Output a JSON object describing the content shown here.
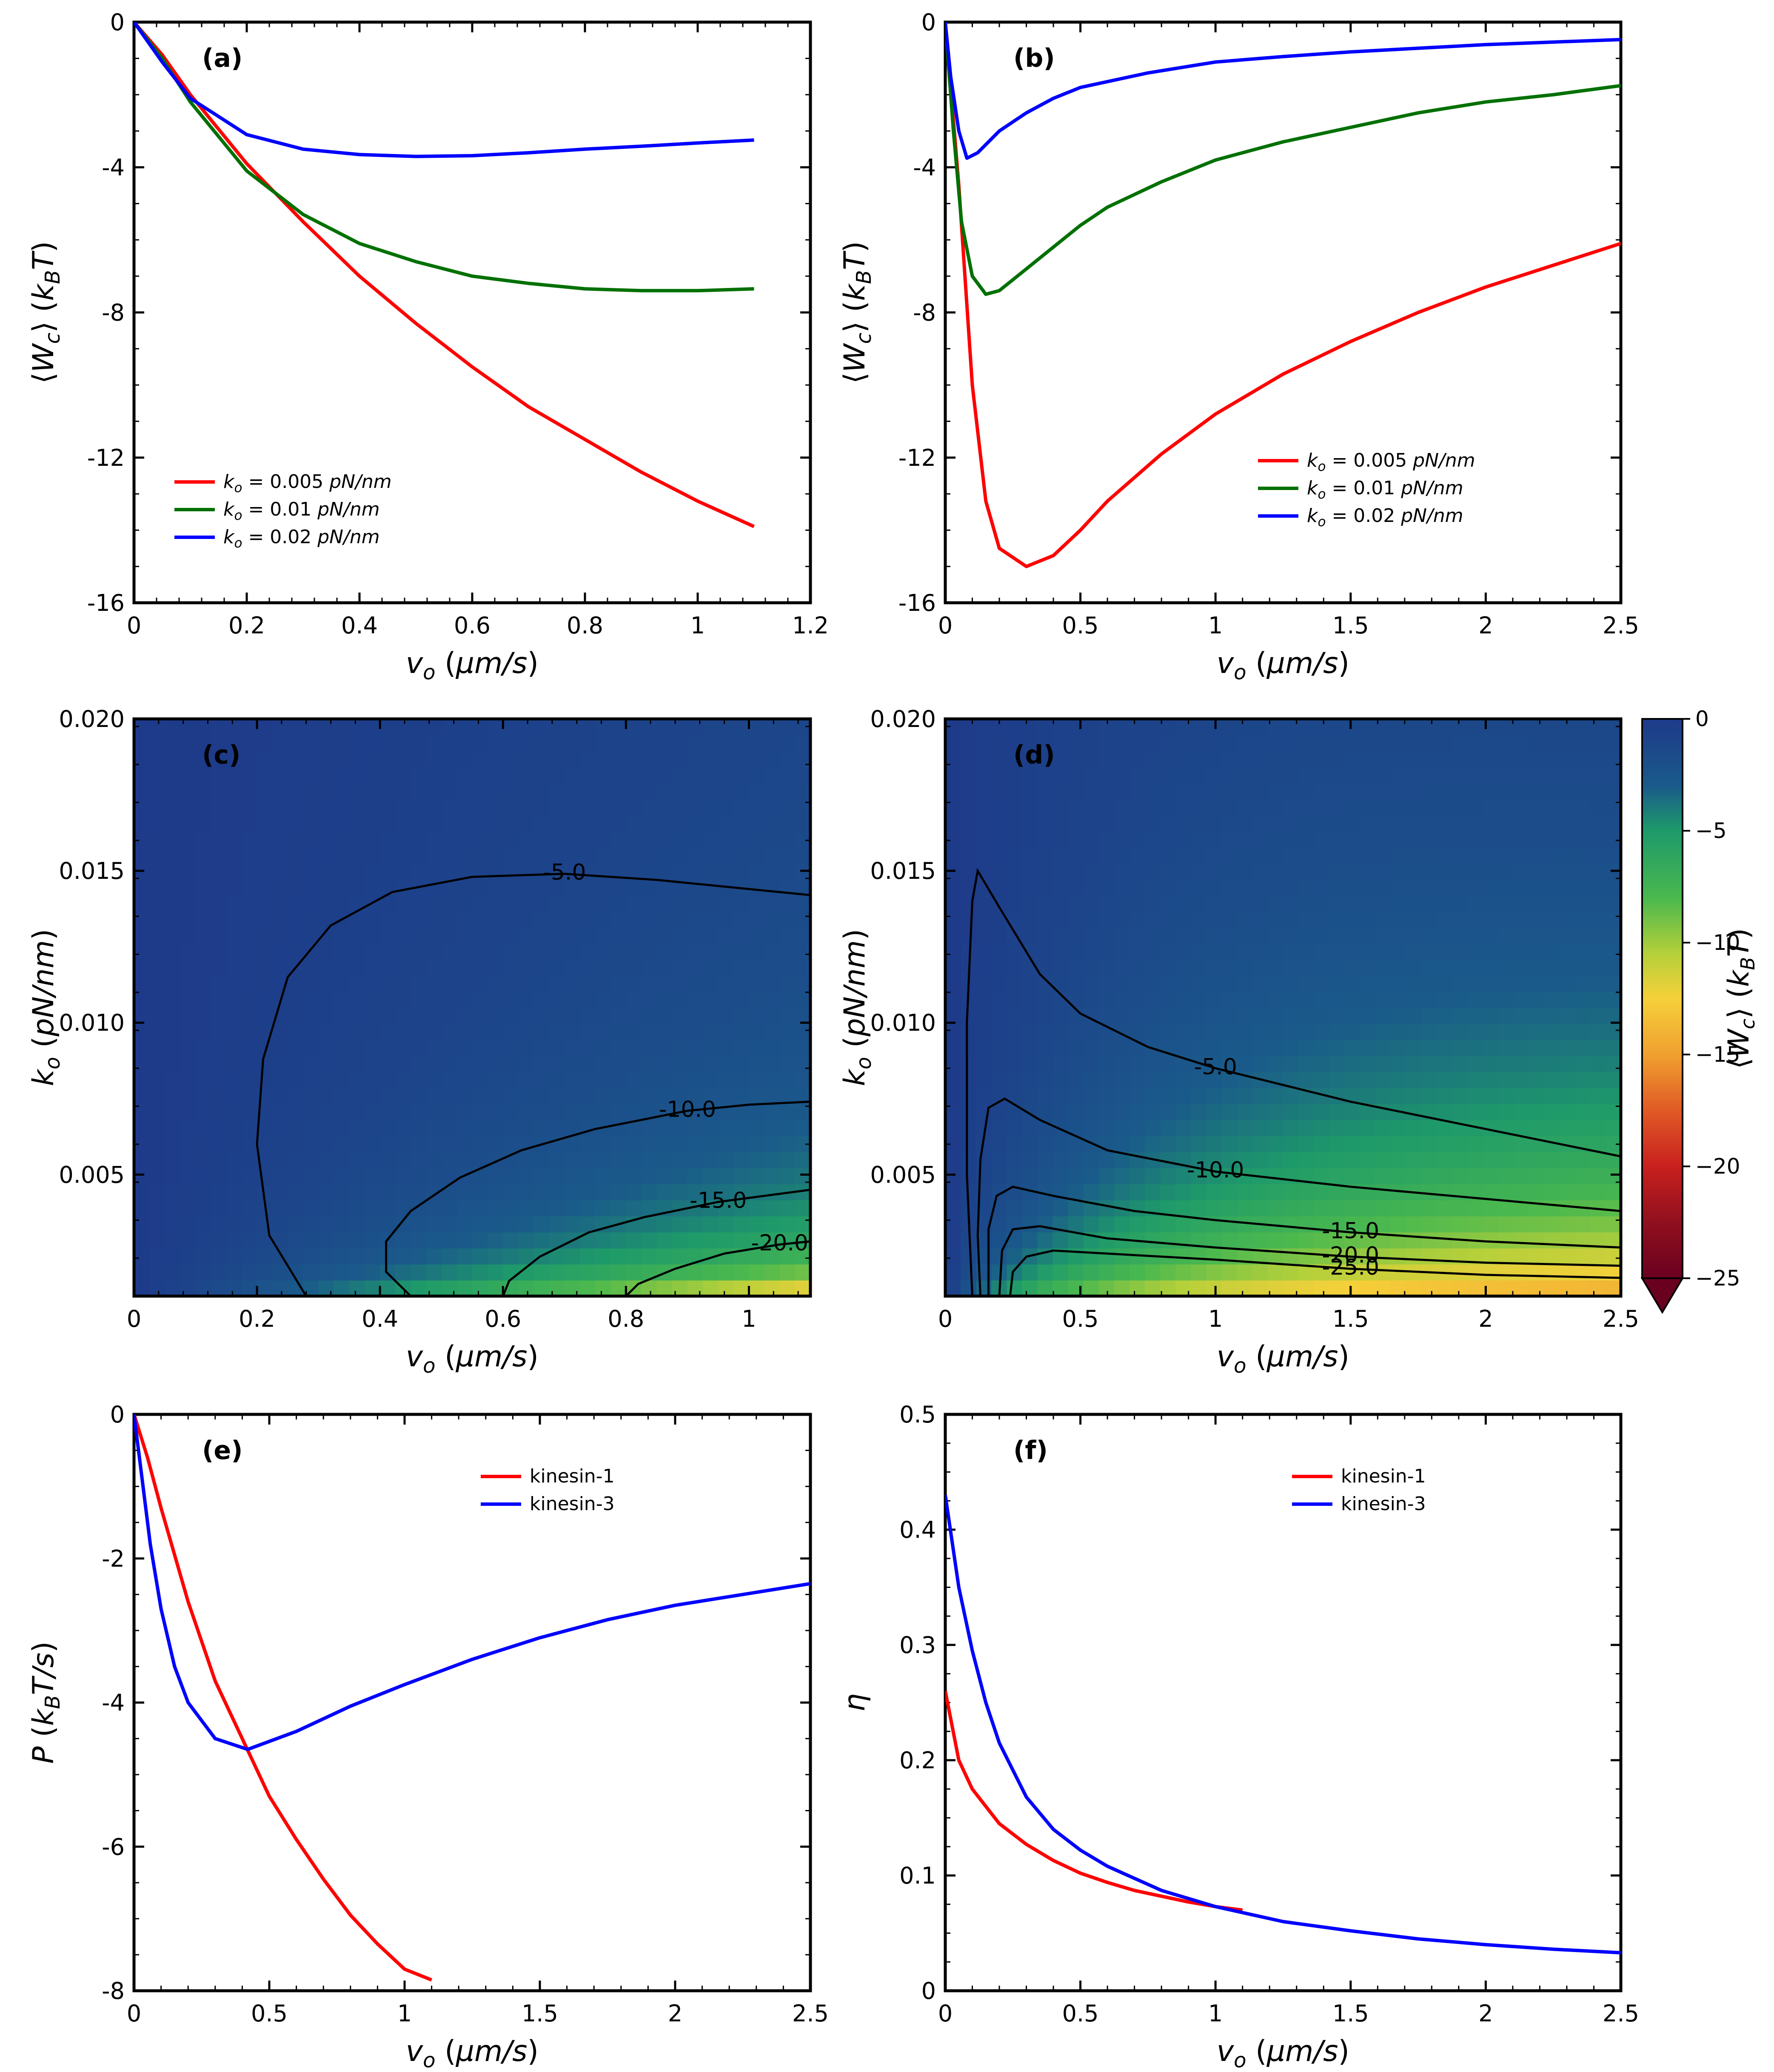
{
  "chart_data": [
    {
      "panel": "(a)",
      "type": "line",
      "xlabel": "v_o (μm/s)",
      "ylabel": "⟨W_c⟩ (k_BT)",
      "xlim": [
        0,
        1.2
      ],
      "ylim": [
        -16,
        0
      ],
      "xticks": [
        "0",
        "0.2",
        "0.4",
        "0.6",
        "0.8",
        "1",
        "1.2"
      ],
      "yticks": [
        "0",
        "-4",
        "-8",
        "-12",
        "-16"
      ],
      "legend_position": "lower-left",
      "series": [
        {
          "name": "k_o = 0.005 pN/nm",
          "color": "#ff0000",
          "x": [
            0,
            0.05,
            0.1,
            0.2,
            0.3,
            0.4,
            0.5,
            0.6,
            0.7,
            0.8,
            0.9,
            1.0,
            1.1
          ],
          "y": [
            0,
            -0.9,
            -2.0,
            -3.9,
            -5.5,
            -7.0,
            -8.3,
            -9.5,
            -10.6,
            -11.5,
            -12.4,
            -13.2,
            -13.9
          ]
        },
        {
          "name": "k_o = 0.01 pN/nm",
          "color": "#007000",
          "x": [
            0,
            0.05,
            0.1,
            0.2,
            0.3,
            0.4,
            0.5,
            0.6,
            0.7,
            0.8,
            0.9,
            1.0,
            1.1
          ],
          "y": [
            0,
            -1.0,
            -2.2,
            -4.1,
            -5.3,
            -6.1,
            -6.6,
            -7.0,
            -7.2,
            -7.35,
            -7.4,
            -7.4,
            -7.35
          ]
        },
        {
          "name": "k_o = 0.02 pN/nm",
          "color": "#0000ff",
          "x": [
            0,
            0.05,
            0.1,
            0.2,
            0.3,
            0.4,
            0.5,
            0.6,
            0.7,
            0.8,
            0.9,
            1.0,
            1.1
          ],
          "y": [
            0,
            -1.1,
            -2.1,
            -3.1,
            -3.5,
            -3.65,
            -3.7,
            -3.68,
            -3.6,
            -3.5,
            -3.42,
            -3.33,
            -3.25
          ]
        }
      ]
    },
    {
      "panel": "(b)",
      "type": "line",
      "xlabel": "v_o (μm/s)",
      "ylabel": "⟨W_c⟩ (k_BT)",
      "xlim": [
        0,
        2.5
      ],
      "ylim": [
        -16,
        0
      ],
      "xticks": [
        "0",
        "0.5",
        "1",
        "1.5",
        "2",
        "2.5"
      ],
      "yticks": [
        "0",
        "-4",
        "-8",
        "-12",
        "-16"
      ],
      "legend_position": "lower-right",
      "series": [
        {
          "name": "k_o = 0.005 pN/nm",
          "color": "#ff0000",
          "x": [
            0,
            0.05,
            0.1,
            0.15,
            0.2,
            0.3,
            0.4,
            0.5,
            0.6,
            0.8,
            1.0,
            1.25,
            1.5,
            1.75,
            2.0,
            2.25,
            2.5
          ],
          "y": [
            0,
            -4.5,
            -10.0,
            -13.2,
            -14.5,
            -15.0,
            -14.7,
            -14.0,
            -13.2,
            -11.9,
            -10.8,
            -9.7,
            -8.8,
            -8.0,
            -7.3,
            -6.7,
            -6.1
          ]
        },
        {
          "name": "k_o = 0.01 pN/nm",
          "color": "#007000",
          "x": [
            0,
            0.03,
            0.06,
            0.1,
            0.15,
            0.2,
            0.3,
            0.4,
            0.5,
            0.6,
            0.8,
            1.0,
            1.25,
            1.5,
            1.75,
            2.0,
            2.25,
            2.5
          ],
          "y": [
            0,
            -3.0,
            -5.5,
            -7.0,
            -7.5,
            -7.4,
            -6.8,
            -6.2,
            -5.6,
            -5.1,
            -4.4,
            -3.8,
            -3.3,
            -2.9,
            -2.5,
            -2.2,
            -2.0,
            -1.75
          ]
        },
        {
          "name": "k_o = 0.02 pN/nm",
          "color": "#0000ff",
          "x": [
            0,
            0.02,
            0.05,
            0.08,
            0.12,
            0.2,
            0.3,
            0.4,
            0.5,
            0.75,
            1.0,
            1.25,
            1.5,
            1.75,
            2.0,
            2.25,
            2.5
          ],
          "y": [
            0,
            -1.5,
            -3.0,
            -3.75,
            -3.6,
            -3.0,
            -2.5,
            -2.1,
            -1.8,
            -1.4,
            -1.1,
            -0.95,
            -0.82,
            -0.72,
            -0.62,
            -0.55,
            -0.48
          ]
        }
      ]
    },
    {
      "panel": "(c)",
      "type": "heatmap",
      "xlabel": "v_o (μm/s)",
      "ylabel": "k_o (pN/nm)",
      "xlim": [
        0,
        1.1
      ],
      "ylim": [
        0.001,
        0.02
      ],
      "xticks": [
        "0",
        "0.2",
        "0.4",
        "0.6",
        "0.8",
        "1"
      ],
      "yticks": [
        "0.020",
        "0.015",
        "0.010",
        "0.005"
      ],
      "contours": [
        {
          "label": "-5.0",
          "x": [
            0.28,
            0.22,
            0.2,
            0.21,
            0.25,
            0.32,
            0.42,
            0.55,
            0.7,
            0.85,
            1.0,
            1.1
          ],
          "y": [
            0.001,
            0.003,
            0.006,
            0.0088,
            0.0115,
            0.0132,
            0.0143,
            0.0148,
            0.0149,
            0.0147,
            0.0144,
            0.0142
          ]
        },
        {
          "label": "-10.0",
          "x": [
            0.45,
            0.41,
            0.41,
            0.45,
            0.53,
            0.63,
            0.75,
            0.9,
            1.0,
            1.1
          ],
          "y": [
            0.001,
            0.0018,
            0.0028,
            0.0038,
            0.0049,
            0.0058,
            0.0065,
            0.0071,
            0.0073,
            0.0074
          ]
        },
        {
          "label": "-15.0",
          "x": [
            0.6,
            0.61,
            0.66,
            0.74,
            0.83,
            0.95,
            1.1
          ],
          "y": [
            0.001,
            0.0015,
            0.0023,
            0.0031,
            0.0036,
            0.0041,
            0.0045
          ]
        },
        {
          "label": "-20.0",
          "x": [
            0.8,
            0.82,
            0.88,
            0.96,
            1.05,
            1.1
          ],
          "y": [
            0.001,
            0.0014,
            0.0019,
            0.0024,
            0.0027,
            0.0028
          ]
        }
      ]
    },
    {
      "panel": "(d)",
      "type": "heatmap",
      "xlabel": "v_o (μm/s)",
      "ylabel": "k_o (pN/nm)",
      "xlim": [
        0,
        2.5
      ],
      "ylim": [
        0.001,
        0.02
      ],
      "xticks": [
        "0",
        "0.5",
        "1",
        "1.5",
        "2",
        "2.5"
      ],
      "yticks": [
        "0.020",
        "0.015",
        "0.010",
        "0.005"
      ],
      "colorbar": {
        "label": "⟨W_c⟩ (k_BT)",
        "ticks": [
          "0",
          "−5",
          "−10",
          "−15",
          "−20",
          "−25"
        ],
        "range": [
          -25,
          0
        ],
        "extend": "min"
      },
      "contours": [
        {
          "label": "-5.0",
          "x": [
            0.1,
            0.08,
            0.08,
            0.1,
            0.12,
            0.2,
            0.35,
            0.5,
            0.75,
            1.0,
            1.5,
            2.0,
            2.5
          ],
          "y": [
            0.001,
            0.005,
            0.01,
            0.014,
            0.015,
            0.0138,
            0.0116,
            0.0103,
            0.0092,
            0.0085,
            0.0074,
            0.0065,
            0.0056
          ]
        },
        {
          "label": "-10.0",
          "x": [
            0.13,
            0.12,
            0.13,
            0.16,
            0.22,
            0.35,
            0.6,
            1.0,
            1.5,
            2.0,
            2.5
          ],
          "y": [
            0.001,
            0.003,
            0.0055,
            0.0072,
            0.0075,
            0.0068,
            0.0058,
            0.0051,
            0.0046,
            0.0042,
            0.0038
          ]
        },
        {
          "label": "-15.0",
          "x": [
            0.16,
            0.16,
            0.19,
            0.25,
            0.4,
            0.7,
            1.0,
            1.5,
            2.0,
            2.5
          ],
          "y": [
            0.001,
            0.0032,
            0.0043,
            0.0046,
            0.0043,
            0.0038,
            0.0035,
            0.0031,
            0.0028,
            0.0026
          ]
        },
        {
          "label": "-20.0",
          "x": [
            0.2,
            0.21,
            0.25,
            0.35,
            0.6,
            1.0,
            1.5,
            2.0,
            2.5
          ],
          "y": [
            0.001,
            0.0025,
            0.0032,
            0.0033,
            0.0029,
            0.0026,
            0.0023,
            0.0021,
            0.002
          ]
        },
        {
          "label": "-25.0",
          "x": [
            0.24,
            0.25,
            0.3,
            0.4,
            0.6,
            1.0,
            1.5,
            2.0,
            2.5
          ],
          "y": [
            0.001,
            0.0018,
            0.0023,
            0.0025,
            0.0024,
            0.0022,
            0.0019,
            0.0017,
            0.0016
          ]
        }
      ]
    },
    {
      "panel": "(e)",
      "type": "line",
      "xlabel": "v_o (μm/s)",
      "ylabel": "P (k_BT/s)",
      "xlim": [
        0,
        2.5
      ],
      "ylim": [
        -8,
        0
      ],
      "xticks": [
        "0",
        "0.5",
        "1",
        "1.5",
        "2",
        "2.5"
      ],
      "yticks": [
        "0",
        "-2",
        "-4",
        "-6",
        "-8"
      ],
      "legend_position": "upper-right",
      "series": [
        {
          "name": "kinesin-1",
          "color": "#ff0000",
          "x": [
            0,
            0.05,
            0.1,
            0.2,
            0.3,
            0.4,
            0.5,
            0.6,
            0.7,
            0.8,
            0.9,
            1.0,
            1.1
          ],
          "y": [
            0,
            -0.6,
            -1.3,
            -2.6,
            -3.7,
            -4.5,
            -5.3,
            -5.9,
            -6.45,
            -6.95,
            -7.35,
            -7.7,
            -7.85
          ]
        },
        {
          "name": "kinesin-3",
          "color": "#0000ff",
          "x": [
            0,
            0.03,
            0.06,
            0.1,
            0.15,
            0.2,
            0.3,
            0.42,
            0.6,
            0.8,
            1.0,
            1.25,
            1.5,
            1.75,
            2.0,
            2.25,
            2.5
          ],
          "y": [
            0,
            -0.9,
            -1.8,
            -2.7,
            -3.5,
            -4.0,
            -4.5,
            -4.65,
            -4.4,
            -4.05,
            -3.75,
            -3.4,
            -3.1,
            -2.85,
            -2.65,
            -2.5,
            -2.35
          ]
        }
      ]
    },
    {
      "panel": "(f)",
      "type": "line",
      "xlabel": "v_o (μm/s)",
      "ylabel": "η",
      "xlim": [
        0,
        2.5
      ],
      "ylim": [
        0,
        0.5
      ],
      "xticks": [
        "0",
        "0.5",
        "1",
        "1.5",
        "2",
        "2.5"
      ],
      "yticks": [
        "0",
        "0.1",
        "0.2",
        "0.3",
        "0.4",
        "0.5"
      ],
      "legend_position": "upper-right",
      "series": [
        {
          "name": "kinesin-1",
          "color": "#ff0000",
          "x": [
            0,
            0.05,
            0.1,
            0.2,
            0.3,
            0.4,
            0.5,
            0.6,
            0.7,
            0.8,
            0.9,
            1.0,
            1.1
          ],
          "y": [
            0.26,
            0.2,
            0.175,
            0.145,
            0.127,
            0.113,
            0.102,
            0.094,
            0.087,
            0.082,
            0.077,
            0.073,
            0.07
          ]
        },
        {
          "name": "kinesin-3",
          "color": "#0000ff",
          "x": [
            0,
            0.05,
            0.1,
            0.15,
            0.2,
            0.3,
            0.4,
            0.5,
            0.6,
            0.8,
            1.0,
            1.25,
            1.5,
            1.75,
            2.0,
            2.25,
            2.5
          ],
          "y": [
            0.43,
            0.35,
            0.295,
            0.25,
            0.215,
            0.168,
            0.14,
            0.122,
            0.108,
            0.087,
            0.073,
            0.06,
            0.052,
            0.045,
            0.04,
            0.036,
            0.033
          ]
        }
      ]
    }
  ]
}
